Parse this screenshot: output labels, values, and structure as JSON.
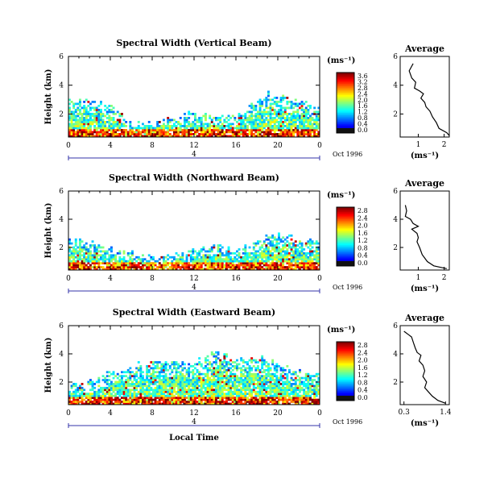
{
  "chart_data": [
    {
      "type": "heatmap",
      "title": "Spectral Width (Vertical Beam)",
      "ylabel": "Height (km)",
      "xlabel": "",
      "x_ticks": [
        "0",
        "4",
        "8",
        "12",
        "16",
        "20",
        "0"
      ],
      "y_ticks": [
        "2",
        "4",
        "6"
      ],
      "xlim": [
        0,
        24
      ],
      "ylim": [
        0.4,
        6.0
      ],
      "day_marker": "4",
      "date_label": "Oct 1996",
      "colorbar": {
        "unit": "(ms⁻¹)",
        "ticks": [
          "3.6",
          "3.2",
          "2.8",
          "2.4",
          "2.0",
          "1.6",
          "1.2",
          "0.8",
          "0.4",
          "0.0"
        ],
        "max": 3.6
      },
      "coverage_top_km": [
        [
          0,
          3.0
        ],
        [
          4,
          2.8
        ],
        [
          6,
          1.3
        ],
        [
          8,
          1.4
        ],
        [
          12,
          2.1
        ],
        [
          16,
          1.8
        ],
        [
          19,
          3.4
        ],
        [
          22,
          3.0
        ],
        [
          24,
          2.4
        ]
      ],
      "profile": {
        "title": "Average",
        "xlabel": "(ms⁻¹)",
        "x_ticks": [
          "1",
          "2"
        ],
        "xlim": [
          0.3,
          2.2
        ],
        "y_ticks": [
          "2",
          "4",
          "6"
        ],
        "ylim": [
          0.4,
          6.0
        ],
        "points": [
          [
            0.8,
            5.5
          ],
          [
            0.65,
            5.0
          ],
          [
            0.75,
            4.5
          ],
          [
            0.9,
            4.2
          ],
          [
            0.85,
            3.8
          ],
          [
            1.05,
            3.6
          ],
          [
            1.2,
            3.4
          ],
          [
            1.1,
            3.1
          ],
          [
            1.25,
            2.8
          ],
          [
            1.3,
            2.5
          ],
          [
            1.45,
            2.2
          ],
          [
            1.55,
            1.8
          ],
          [
            1.7,
            1.4
          ],
          [
            1.8,
            1.0
          ],
          [
            2.1,
            0.7
          ],
          [
            2.2,
            0.5
          ]
        ]
      }
    },
    {
      "type": "heatmap",
      "title": "Spectral Width (Northward Beam)",
      "ylabel": "Height (km)",
      "xlabel": "",
      "x_ticks": [
        "0",
        "4",
        "8",
        "12",
        "16",
        "20",
        "0"
      ],
      "y_ticks": [
        "2",
        "4",
        "6"
      ],
      "xlim": [
        0,
        24
      ],
      "ylim": [
        0.4,
        6.0
      ],
      "day_marker": "4",
      "date_label": "Oct 1996",
      "colorbar": {
        "unit": "(ms⁻¹)",
        "ticks": [
          "2.8",
          "2.4",
          "2.0",
          "1.6",
          "1.2",
          "0.8",
          "0.4",
          "0.0"
        ],
        "max": 2.8
      },
      "coverage_top_km": [
        [
          0,
          2.6
        ],
        [
          4,
          2.0
        ],
        [
          8,
          1.2
        ],
        [
          12,
          1.9
        ],
        [
          14,
          2.2
        ],
        [
          16,
          1.6
        ],
        [
          19,
          3.0
        ],
        [
          22,
          2.6
        ],
        [
          24,
          2.3
        ]
      ],
      "profile": {
        "title": "Average",
        "xlabel": "(ms⁻¹)",
        "x_ticks": [
          "1",
          "2"
        ],
        "xlim": [
          0.3,
          2.2
        ],
        "y_ticks": [
          "2",
          "4",
          "6"
        ],
        "ylim": [
          0.4,
          6.0
        ],
        "points": [
          [
            0.5,
            5.0
          ],
          [
            0.55,
            4.6
          ],
          [
            0.5,
            4.2
          ],
          [
            0.7,
            4.0
          ],
          [
            0.8,
            3.7
          ],
          [
            1.0,
            3.5
          ],
          [
            0.75,
            3.3
          ],
          [
            0.95,
            3.0
          ],
          [
            1.0,
            2.7
          ],
          [
            0.95,
            2.4
          ],
          [
            1.05,
            2.0
          ],
          [
            1.15,
            1.5
          ],
          [
            1.35,
            1.0
          ],
          [
            1.6,
            0.7
          ],
          [
            2.1,
            0.5
          ]
        ]
      }
    },
    {
      "type": "heatmap",
      "title": "Spectral Width (Eastward Beam)",
      "ylabel": "Height (km)",
      "xlabel": "Local Time",
      "x_ticks": [
        "0",
        "4",
        "8",
        "12",
        "16",
        "20",
        "0"
      ],
      "y_ticks": [
        "2",
        "4",
        "6"
      ],
      "xlim": [
        0,
        24
      ],
      "ylim": [
        0.4,
        6.0
      ],
      "day_marker": "4",
      "date_label": "Oct 1996",
      "colorbar": {
        "unit": "(ms⁻¹)",
        "ticks": [
          "2.8",
          "2.4",
          "2.0",
          "1.6",
          "1.2",
          "0.8",
          "0.4",
          "0.0"
        ],
        "max": 2.8
      },
      "coverage_top_km": [
        [
          0,
          1.6
        ],
        [
          2,
          2.0
        ],
        [
          4,
          2.6
        ],
        [
          8,
          3.5
        ],
        [
          12,
          3.4
        ],
        [
          14,
          4.2
        ],
        [
          16,
          3.5
        ],
        [
          18,
          3.9
        ],
        [
          22,
          2.7
        ],
        [
          24,
          2.5
        ]
      ],
      "profile": {
        "title": "Average",
        "xlabel": "(ms⁻¹)",
        "x_ticks": [
          "0.3",
          "1.4"
        ],
        "xlim": [
          0.2,
          1.5
        ],
        "y_ticks": [
          "2",
          "4",
          "6"
        ],
        "ylim": [
          0.4,
          6.0
        ],
        "points": [
          [
            0.3,
            5.6
          ],
          [
            0.5,
            5.2
          ],
          [
            0.55,
            4.8
          ],
          [
            0.6,
            4.4
          ],
          [
            0.65,
            4.1
          ],
          [
            0.75,
            3.9
          ],
          [
            0.7,
            3.5
          ],
          [
            0.8,
            3.2
          ],
          [
            0.85,
            2.8
          ],
          [
            0.8,
            2.4
          ],
          [
            0.9,
            2.0
          ],
          [
            0.85,
            1.6
          ],
          [
            0.95,
            1.3
          ],
          [
            1.05,
            1.0
          ],
          [
            1.2,
            0.7
          ],
          [
            1.4,
            0.5
          ]
        ]
      }
    }
  ]
}
